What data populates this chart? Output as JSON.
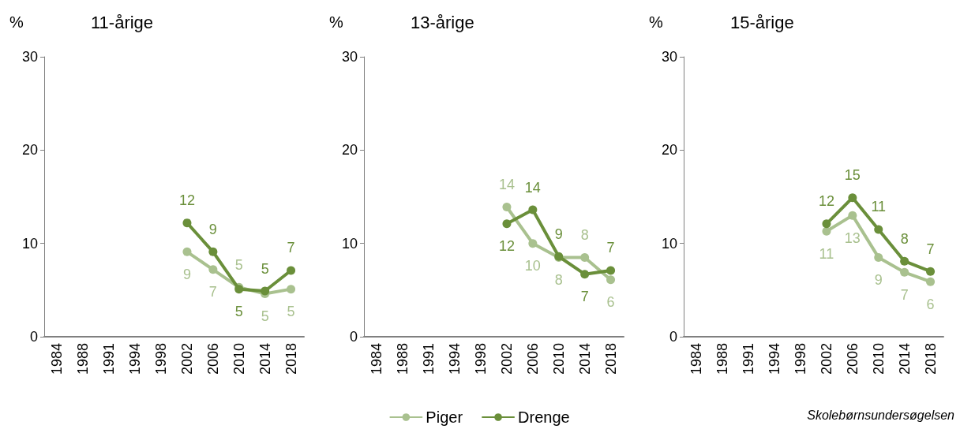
{
  "chart_data": [
    {
      "type": "line",
      "title": "11-årige",
      "ylabel": "%",
      "categories": [
        "1984",
        "1988",
        "1991",
        "1994",
        "1998",
        "2002",
        "2006",
        "2010",
        "2014",
        "2018"
      ],
      "ylim": [
        0,
        30
      ],
      "yticks": [
        0,
        10,
        20,
        30
      ],
      "grid": false,
      "legend": false,
      "marker": "circle",
      "line_style": "solid",
      "series": [
        {
          "color": "#a9c18f",
          "values": [
            null,
            null,
            null,
            null,
            null,
            9.1,
            7.2,
            5.3,
            4.6,
            5.1
          ],
          "value_labels": [
            null,
            null,
            null,
            null,
            null,
            "9",
            "7",
            "5",
            "5",
            "5"
          ]
        },
        {
          "color": "#6a8f3a",
          "values": [
            null,
            null,
            null,
            null,
            null,
            12.2,
            9.1,
            5.1,
            4.9,
            7.1
          ],
          "value_labels": [
            null,
            null,
            null,
            null,
            null,
            "12",
            "9",
            "5",
            "5",
            "7"
          ]
        }
      ]
    },
    {
      "type": "line",
      "title": "13-årige",
      "ylabel": "%",
      "categories": [
        "1984",
        "1988",
        "1991",
        "1994",
        "1998",
        "2002",
        "2006",
        "2010",
        "2014",
        "2018"
      ],
      "ylim": [
        0,
        30
      ],
      "yticks": [
        0,
        10,
        20,
        30
      ],
      "grid": false,
      "legend": "bottom",
      "marker": "circle",
      "line_style": "solid",
      "series": [
        {
          "name": "Piger",
          "color": "#a9c18f",
          "values": [
            null,
            null,
            null,
            null,
            null,
            13.9,
            10,
            8.5,
            8.5,
            6.1
          ],
          "value_labels": [
            null,
            null,
            null,
            null,
            null,
            "14",
            "10",
            "8",
            "8",
            "6"
          ]
        },
        {
          "name": "Drenge",
          "color": "#6a8f3a",
          "values": [
            null,
            null,
            null,
            null,
            null,
            12.1,
            13.6,
            8.6,
            6.7,
            7.1
          ],
          "value_labels": [
            null,
            null,
            null,
            null,
            null,
            "12",
            "14",
            "9",
            "7",
            "7"
          ]
        }
      ]
    },
    {
      "type": "line",
      "title": "15-årige",
      "ylabel": "%",
      "categories": [
        "1984",
        "1988",
        "1991",
        "1994",
        "1998",
        "2002",
        "2006",
        "2010",
        "2014",
        "2018"
      ],
      "ylim": [
        0,
        30
      ],
      "yticks": [
        0,
        10,
        20,
        30
      ],
      "grid": false,
      "legend": false,
      "marker": "circle",
      "line_style": "solid",
      "annotations": [
        "Skolebørnsundersøgelsen"
      ],
      "series": [
        {
          "color": "#a9c18f",
          "values": [
            null,
            null,
            null,
            null,
            null,
            11.3,
            13.0,
            8.5,
            6.9,
            5.9
          ],
          "value_labels": [
            null,
            null,
            null,
            null,
            null,
            "11",
            "13",
            "9",
            "7",
            "6"
          ]
        },
        {
          "color": "#6a8f3a",
          "values": [
            null,
            null,
            null,
            null,
            null,
            12.1,
            14.9,
            11.5,
            8.1,
            7.0
          ],
          "value_labels": [
            null,
            null,
            null,
            null,
            null,
            "12",
            "15",
            "11",
            "8",
            "7"
          ]
        }
      ]
    }
  ]
}
